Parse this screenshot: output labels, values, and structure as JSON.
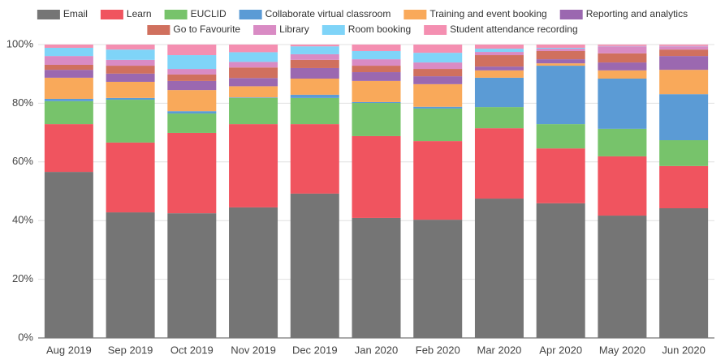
{
  "chart_data": {
    "type": "stacked-bar",
    "categories": [
      "Aug 2019",
      "Sep 2019",
      "Oct 2019",
      "Nov 2019",
      "Dec 2019",
      "Jan 2020",
      "Feb 2020",
      "Mar 2020",
      "Apr 2020",
      "May 2020",
      "Jun 2020"
    ],
    "series": [
      {
        "name": "Email",
        "color": "#757575",
        "values": [
          56.6,
          42.8,
          42.5,
          44.5,
          49.2,
          40.9,
          40.3,
          47.5,
          45.9,
          41.7,
          44.2
        ]
      },
      {
        "name": "Learn",
        "color": "#f0545f",
        "values": [
          16.3,
          23.8,
          27.4,
          28.4,
          23.7,
          27.9,
          26.8,
          24.0,
          18.7,
          20.2,
          14.4
        ]
      },
      {
        "name": "EUCLID",
        "color": "#77c36b",
        "values": [
          7.8,
          14.6,
          6.6,
          8.9,
          8.9,
          11.3,
          11.1,
          7.2,
          8.3,
          9.4,
          8.8
        ]
      },
      {
        "name": "Collaborate virtual classroom",
        "color": "#5b9bd5",
        "values": [
          0.8,
          0.6,
          0.8,
          0.2,
          1.1,
          0.3,
          0.6,
          10.0,
          19.9,
          17.1,
          15.7
        ]
      },
      {
        "name": "Training and event booking",
        "color": "#f9a95a",
        "values": [
          7.2,
          5.5,
          7.2,
          3.8,
          5.5,
          7.2,
          7.7,
          2.5,
          0.8,
          2.8,
          8.3
        ]
      },
      {
        "name": "Reporting and analytics",
        "color": "#9b68b0",
        "values": [
          2.7,
          2.8,
          3.1,
          2.8,
          3.6,
          3.0,
          2.7,
          1.3,
          1.4,
          2.7,
          4.7
        ]
      },
      {
        "name": "Go to Favourite",
        "color": "#d0705e",
        "values": [
          1.7,
          2.7,
          2.2,
          3.6,
          2.8,
          2.2,
          2.5,
          3.9,
          2.8,
          3.1,
          2.2
        ]
      },
      {
        "name": "Library",
        "color": "#d98bc4",
        "values": [
          3.0,
          2.0,
          1.9,
          1.9,
          1.9,
          2.2,
          2.2,
          1.1,
          0.8,
          2.4,
          1.1
        ]
      },
      {
        "name": "Room booking",
        "color": "#7fd4f8",
        "values": [
          2.8,
          3.5,
          4.7,
          3.3,
          2.7,
          2.8,
          3.3,
          1.1,
          0.3,
          0.1,
          0.1
        ]
      },
      {
        "name": "Student attendance recording",
        "color": "#f48fb1",
        "values": [
          1.1,
          1.7,
          3.6,
          2.6,
          0.6,
          2.2,
          2.8,
          1.4,
          1.1,
          0.5,
          0.5
        ]
      }
    ],
    "ylim": [
      0,
      100
    ],
    "yticks": [
      {
        "value": 0,
        "label": "0%"
      },
      {
        "value": 20,
        "label": "20%"
      },
      {
        "value": 40,
        "label": "40%"
      },
      {
        "value": 60,
        "label": "60%"
      },
      {
        "value": 80,
        "label": "80%"
      },
      {
        "value": 100,
        "label": "100%"
      }
    ],
    "grid": true,
    "legend": "top"
  }
}
